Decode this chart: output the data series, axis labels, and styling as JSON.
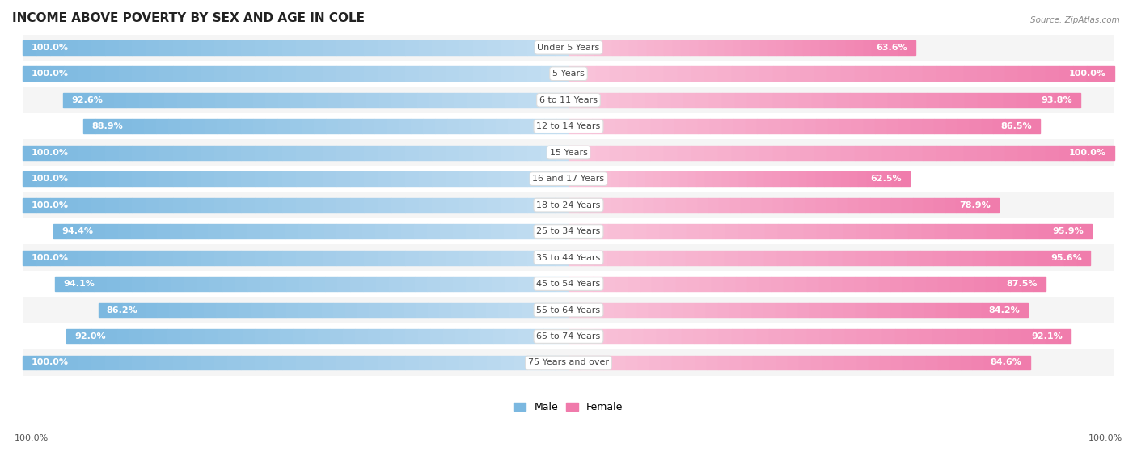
{
  "title": "INCOME ABOVE POVERTY BY SEX AND AGE IN COLE",
  "source": "Source: ZipAtlas.com",
  "categories": [
    "Under 5 Years",
    "5 Years",
    "6 to 11 Years",
    "12 to 14 Years",
    "15 Years",
    "16 and 17 Years",
    "18 to 24 Years",
    "25 to 34 Years",
    "35 to 44 Years",
    "45 to 54 Years",
    "55 to 64 Years",
    "65 to 74 Years",
    "75 Years and over"
  ],
  "male_values": [
    100.0,
    100.0,
    92.6,
    88.9,
    100.0,
    100.0,
    100.0,
    94.4,
    100.0,
    94.1,
    86.2,
    92.0,
    100.0
  ],
  "female_values": [
    63.6,
    100.0,
    93.8,
    86.5,
    100.0,
    62.5,
    78.9,
    95.9,
    95.6,
    87.5,
    84.2,
    92.1,
    84.6
  ],
  "male_color": "#7bb8e0",
  "male_color_light": "#c5dff2",
  "female_color": "#f07aab",
  "female_color_light": "#f9c4da",
  "male_label": "Male",
  "female_label": "Female",
  "row_color_odd": "#f5f5f5",
  "row_color_even": "#ffffff",
  "title_fontsize": 11,
  "label_fontsize": 8,
  "cat_fontsize": 8,
  "source_fontsize": 7.5,
  "max_value": 100.0,
  "footer_male_value": "100.0%",
  "footer_female_value": "100.0%"
}
